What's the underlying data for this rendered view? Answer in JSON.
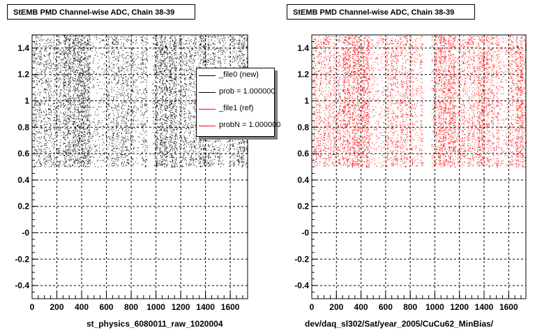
{
  "chart_data": [
    {
      "type": "scatter",
      "title": "StEMB PMD Channel-wise ADC, Chain 38-39",
      "xlabel": "st_physics_6080011_raw_1020004",
      "ylabel": "",
      "xlim": [
        0,
        1740
      ],
      "ylim": [
        -0.5,
        1.5
      ],
      "x_ticks": [
        0,
        200,
        400,
        600,
        800,
        1000,
        1200,
        1400,
        1600
      ],
      "y_ticks": [
        -0.4,
        -0.2,
        0,
        0.2,
        0.4,
        0.6,
        0.8,
        1,
        1.2,
        1.4
      ],
      "y_tick_labels": [
        "-0.4",
        "-0.2",
        "-0",
        "0.2",
        "0.4",
        "0.6",
        "0.8",
        "1",
        "1.2",
        "1.4"
      ],
      "grid": true,
      "legend_position": "top-right",
      "point_color": "#000000",
      "y_range_of_points": [
        0.5,
        1.5
      ],
      "empty_x_gaps": [
        [
          930,
          970
        ]
      ],
      "sparse_x_ranges": [
        [
          480,
          600
        ],
        [
          820,
          880
        ],
        [
          1520,
          1600
        ]
      ],
      "dense_x_ranges": [
        [
          250,
          470
        ],
        [
          1000,
          1160
        ],
        [
          1350,
          1420
        ],
        [
          1660,
          1740
        ]
      ]
    },
    {
      "type": "scatter",
      "title": "StEMB PMD Channel-wise ADC, Chain 38-39",
      "xlabel": "dev/daq_sl302/Sat/year_2005/CuCu62_MinBias/",
      "ylabel": "",
      "xlim": [
        0,
        1740
      ],
      "ylim": [
        -0.5,
        1.5
      ],
      "x_ticks": [
        0,
        200,
        400,
        600,
        800,
        1000,
        1200,
        1400,
        1600
      ],
      "y_ticks": [
        -0.4,
        -0.2,
        0,
        0.2,
        0.4,
        0.6,
        0.8,
        1,
        1.2,
        1.4
      ],
      "y_tick_labels": [
        "-0.4",
        "-0.2",
        "-0",
        "0.2",
        "0.4",
        "0.6",
        "0.8",
        "1",
        "1.2",
        "1.4"
      ],
      "grid": true,
      "point_color": "#ff0000",
      "y_range_of_points": [
        0.5,
        1.5
      ],
      "empty_x_gaps": [
        [
          900,
          970
        ]
      ],
      "sparse_x_ranges": [
        [
          480,
          600
        ],
        [
          820,
          880
        ],
        [
          1520,
          1600
        ]
      ],
      "dense_x_ranges": [
        [
          250,
          470
        ],
        [
          1000,
          1160
        ],
        [
          1350,
          1420
        ],
        [
          1660,
          1740
        ]
      ]
    }
  ],
  "legend": {
    "entries": [
      {
        "label": "_file0 (new)",
        "color": "#000000"
      },
      {
        "label": "prob = 1.000000",
        "color": "#000000"
      },
      {
        "label": "_file1 (ref)",
        "color": "#ff0000"
      },
      {
        "label": "probN = 1.000000",
        "color": "#ff0000"
      }
    ]
  }
}
